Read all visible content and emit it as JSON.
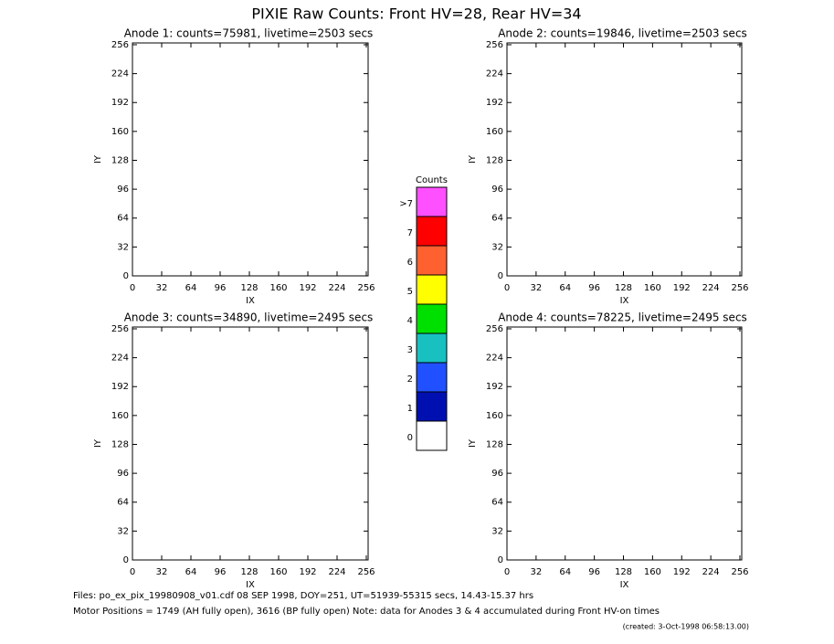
{
  "header": {
    "title": "PIXIE Raw Counts:  Front HV=28, Rear HV=34"
  },
  "chart_data": [
    {
      "type": "heatmap",
      "title": "Anode 1: counts=75981, livetime=2503 secs",
      "xlabel": "IX",
      "ylabel": "IY",
      "xlim": [
        0,
        258
      ],
      "ylim": [
        0,
        258
      ],
      "xticks": [
        0,
        32,
        64,
        96,
        128,
        160,
        192,
        224,
        256
      ],
      "yticks": [
        0,
        32,
        64,
        96,
        128,
        160,
        192,
        224,
        256
      ]
    },
    {
      "type": "heatmap",
      "title": "Anode 2: counts=19846, livetime=2503 secs",
      "xlabel": "IX",
      "ylabel": "IY",
      "xlim": [
        0,
        258
      ],
      "ylim": [
        0,
        258
      ],
      "xticks": [
        0,
        32,
        64,
        96,
        128,
        160,
        192,
        224,
        256
      ],
      "yticks": [
        0,
        32,
        64,
        96,
        128,
        160,
        192,
        224,
        256
      ]
    },
    {
      "type": "heatmap",
      "title": "Anode 3: counts=34890, livetime=2495 secs",
      "xlabel": "IX",
      "ylabel": "IY",
      "xlim": [
        0,
        258
      ],
      "ylim": [
        0,
        258
      ],
      "xticks": [
        0,
        32,
        64,
        96,
        128,
        160,
        192,
        224,
        256
      ],
      "yticks": [
        0,
        32,
        64,
        96,
        128,
        160,
        192,
        224,
        256
      ]
    },
    {
      "type": "heatmap",
      "title": "Anode 4: counts=78225, livetime=2495 secs",
      "xlabel": "IX",
      "ylabel": "IY",
      "xlim": [
        0,
        258
      ],
      "ylim": [
        0,
        258
      ],
      "xticks": [
        0,
        32,
        64,
        96,
        128,
        160,
        192,
        224,
        256
      ],
      "yticks": [
        0,
        32,
        64,
        96,
        128,
        160,
        192,
        224,
        256
      ]
    },
    {
      "type": "colorbar",
      "title": "Counts",
      "ticks": [
        0,
        1,
        2,
        3,
        4,
        5,
        6,
        7,
        {
          "value": 8,
          "label": ">7"
        }
      ],
      "colors": [
        "#ffffff",
        "#0010b0",
        "#2050ff",
        "#18c0c0",
        "#00e000",
        "#ffff00",
        "#ff6030",
        "#ff0000",
        "#ff50ff"
      ]
    }
  ],
  "footer": {
    "files": "Files: po_ex_pix_19980908_v01.cdf     08 SEP 1998, DOY=251, UT=51939-55315 secs, 14.43-15.37 hrs",
    "motor": "Motor Positions = 1749 (AH fully open), 3616 (BP fully open)    Note: data for Anodes 3 & 4 accumulated during Front HV-on times",
    "created": "(created:  3-Oct-1998 06:58:13.00)"
  }
}
